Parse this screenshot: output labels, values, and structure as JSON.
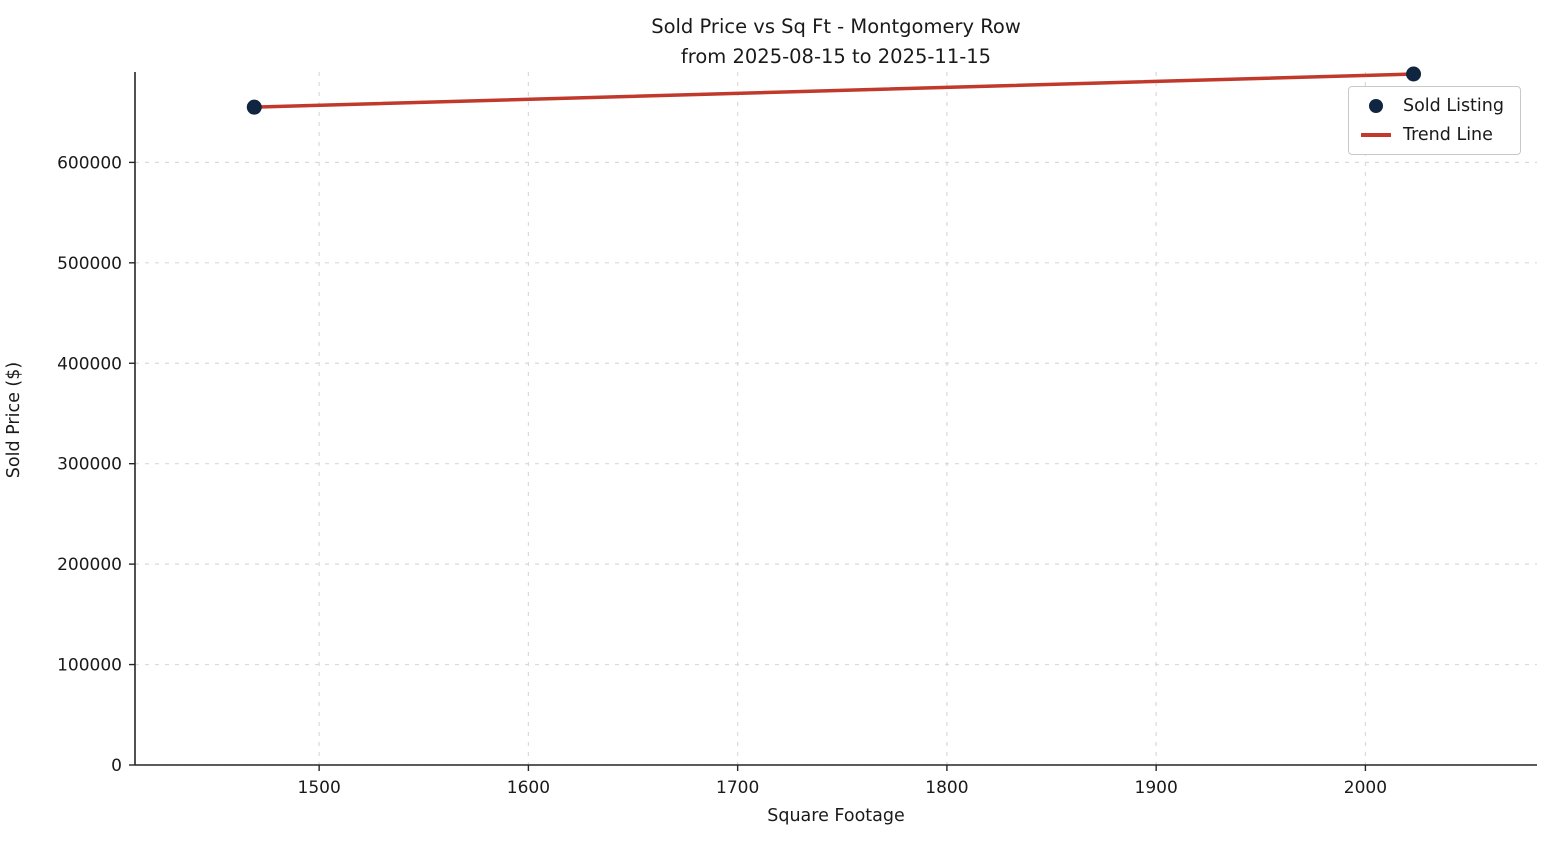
{
  "chart_data": {
    "type": "scatter",
    "title": "Sold Price vs Sq Ft - Montgomery Row",
    "subtitle": "from 2025-08-15 to 2025-11-15",
    "xlabel": "Square Footage",
    "ylabel": "Sold Price ($)",
    "xlim": [
      1412,
      2082
    ],
    "ylim": [
      0,
      690000
    ],
    "xticks": [
      1500,
      1600,
      1700,
      1800,
      1900,
      2000
    ],
    "yticks": [
      0,
      100000,
      200000,
      300000,
      400000,
      500000,
      600000
    ],
    "grid": true,
    "grid_style": "dashed",
    "legend_position": "upper right",
    "colors": {
      "scatter": "#0f2540",
      "trend": "#c0392b",
      "grid": "#dadada",
      "spine": "#262626",
      "tick_text": "#1a1a1a"
    },
    "series": [
      {
        "name": "Sold Listing",
        "kind": "scatter",
        "color": "#0f2540",
        "points": [
          [
            1469,
            655000
          ],
          [
            2023,
            688000
          ]
        ]
      },
      {
        "name": "Trend Line",
        "kind": "line",
        "color": "#c0392b",
        "points": [
          [
            1469,
            655000
          ],
          [
            2023,
            688000
          ]
        ]
      }
    ],
    "legend": {
      "items": [
        {
          "label": "Sold Listing",
          "marker": "dot"
        },
        {
          "label": "Trend Line",
          "marker": "line"
        }
      ]
    }
  }
}
